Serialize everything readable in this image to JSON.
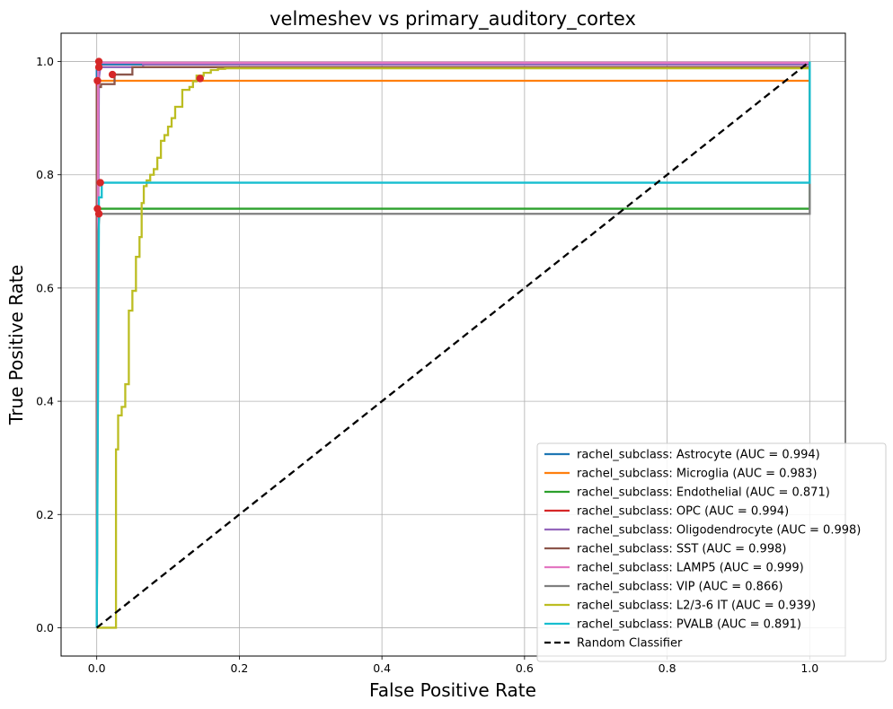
{
  "chart_data": {
    "type": "line",
    "title": "velmeshev vs primary_auditory_cortex",
    "xlabel": "False Positive Rate",
    "ylabel": "True Positive Rate",
    "xlim": [
      -0.05,
      1.05
    ],
    "ylim": [
      -0.05,
      1.05
    ],
    "xticks": [
      0.0,
      0.2,
      0.4,
      0.6,
      0.8,
      1.0
    ],
    "yticks": [
      0.0,
      0.2,
      0.4,
      0.6,
      0.8,
      1.0
    ],
    "xtick_labels": [
      "0.0",
      "0.2",
      "0.4",
      "0.6",
      "0.8",
      "1.0"
    ],
    "ytick_labels": [
      "0.0",
      "0.2",
      "0.4",
      "0.6",
      "0.8",
      "1.0"
    ],
    "grid": true,
    "legend_position": "lower-right",
    "series": [
      {
        "name": "rachel_subclass: Astrocyte (AUC = 0.994)",
        "color": "#1f77b4",
        "style": "solid",
        "x": [
          0,
          0,
          0.005,
          1.0,
          1.0
        ],
        "y": [
          0,
          0.99,
          0.995,
          0.995,
          1.0
        ]
      },
      {
        "name": "rachel_subclass: Microglia (AUC = 0.983)",
        "color": "#ff7f0e",
        "style": "solid",
        "x": [
          0,
          0,
          1.0,
          1.0
        ],
        "y": [
          0,
          0.966,
          0.966,
          1.0
        ]
      },
      {
        "name": "rachel_subclass: Endothelial (AUC = 0.871)",
        "color": "#2ca02c",
        "style": "solid",
        "x": [
          0,
          0.002,
          0.002,
          1.0,
          1.0
        ],
        "y": [
          0,
          0.6,
          0.74,
          0.74,
          1.0
        ]
      },
      {
        "name": "rachel_subclass: OPC (AUC = 0.994)",
        "color": "#d62728",
        "style": "solid",
        "x": [
          0,
          0,
          0.003,
          0.003,
          1.0,
          1.0
        ],
        "y": [
          0,
          0.965,
          0.965,
          0.99,
          0.99,
          1.0
        ]
      },
      {
        "name": "rachel_subclass: Oligodendrocyte (AUC = 0.998)",
        "color": "#9467bd",
        "style": "solid",
        "x": [
          0,
          0.003,
          0.005,
          0.065,
          0.065,
          1.0,
          1.0
        ],
        "y": [
          0,
          0.97,
          0.99,
          0.99,
          0.995,
          0.995,
          1.0
        ]
      },
      {
        "name": "rachel_subclass: SST (AUC = 0.998)",
        "color": "#8c564b",
        "style": "solid",
        "x": [
          0,
          0,
          0.006,
          0.006,
          0.025,
          0.025,
          0.05,
          0.05,
          1.0,
          1.0
        ],
        "y": [
          0,
          0.955,
          0.955,
          0.96,
          0.96,
          0.977,
          0.977,
          0.99,
          0.99,
          1.0
        ]
      },
      {
        "name": "rachel_subclass: LAMP5 (AUC = 0.999)",
        "color": "#e377c2",
        "style": "solid",
        "x": [
          0,
          0.002,
          0.002,
          1.0
        ],
        "y": [
          0,
          0.99,
          0.998,
          0.998
        ]
      },
      {
        "name": "rachel_subclass: VIP (AUC = 0.866)",
        "color": "#7f7f7f",
        "style": "solid",
        "x": [
          0,
          0.002,
          0.004,
          1.0,
          1.0
        ],
        "y": [
          0,
          0.7,
          0.731,
          0.731,
          1.0
        ]
      },
      {
        "name": "rachel_subclass: L2/3-6 IT (AUC = 0.939)",
        "color": "#bcbd22",
        "style": "solid",
        "x": [
          0,
          0.027,
          0.027,
          0.03,
          0.03,
          0.035,
          0.035,
          0.04,
          0.04,
          0.045,
          0.045,
          0.05,
          0.05,
          0.055,
          0.055,
          0.06,
          0.06,
          0.063,
          0.063,
          0.066,
          0.066,
          0.07,
          0.07,
          0.075,
          0.075,
          0.08,
          0.08,
          0.085,
          0.085,
          0.09,
          0.09,
          0.095,
          0.095,
          0.1,
          0.1,
          0.105,
          0.105,
          0.11,
          0.11,
          0.12,
          0.12,
          0.13,
          0.13,
          0.135,
          0.135,
          0.14,
          0.14,
          0.15,
          0.15,
          0.16,
          0.16,
          0.17,
          0.17,
          0.18,
          0.18,
          1.0,
          1.0
        ],
        "y": [
          0,
          0,
          0.315,
          0.315,
          0.375,
          0.375,
          0.39,
          0.39,
          0.43,
          0.43,
          0.56,
          0.56,
          0.595,
          0.595,
          0.655,
          0.655,
          0.69,
          0.69,
          0.75,
          0.75,
          0.78,
          0.78,
          0.79,
          0.79,
          0.8,
          0.8,
          0.81,
          0.81,
          0.83,
          0.83,
          0.86,
          0.86,
          0.87,
          0.87,
          0.885,
          0.885,
          0.9,
          0.9,
          0.92,
          0.92,
          0.95,
          0.95,
          0.955,
          0.955,
          0.965,
          0.965,
          0.975,
          0.975,
          0.98,
          0.98,
          0.985,
          0.985,
          0.987,
          0.987,
          0.988,
          0.988,
          1.0
        ]
      },
      {
        "name": "rachel_subclass: PVALB (AUC = 0.891)",
        "color": "#17becf",
        "style": "solid",
        "x": [
          0,
          0.003,
          0.003,
          0.007,
          0.007,
          1.0,
          1.0,
          1.0
        ],
        "y": [
          0,
          0.7,
          0.76,
          0.76,
          0.786,
          0.786,
          0.985,
          1.0
        ]
      },
      {
        "name": "Random Classifier",
        "color": "#000000",
        "style": "dashed",
        "x": [
          0,
          1
        ],
        "y": [
          0,
          1
        ]
      }
    ],
    "markers": [
      {
        "x": 0.003,
        "y": 1.0,
        "color": "#d62728"
      },
      {
        "x": 0.003,
        "y": 0.99,
        "color": "#d62728"
      },
      {
        "x": 0.001,
        "y": 0.966,
        "color": "#d62728"
      },
      {
        "x": 0.022,
        "y": 0.977,
        "color": "#d62728"
      },
      {
        "x": 0.145,
        "y": 0.97,
        "color": "#d62728"
      },
      {
        "x": 0.001,
        "y": 0.74,
        "color": "#d62728"
      },
      {
        "x": 0.005,
        "y": 0.786,
        "color": "#d62728"
      },
      {
        "x": 0.003,
        "y": 0.731,
        "color": "#d62728"
      }
    ]
  }
}
